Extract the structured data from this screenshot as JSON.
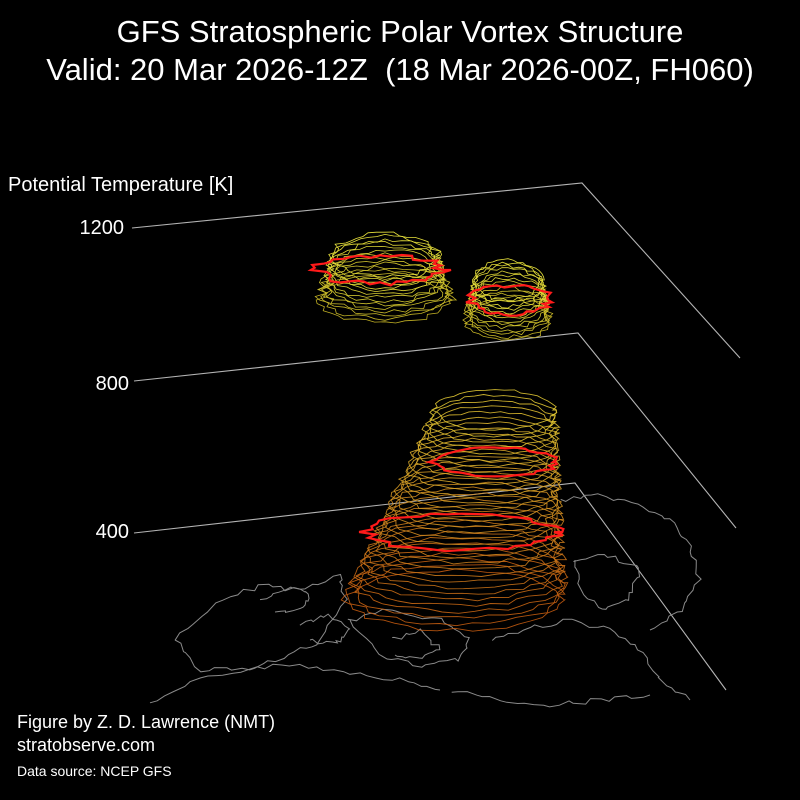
{
  "title_line1": "GFS Stratospheric Polar Vortex Structure",
  "title_line2": "Valid: 20 Mar 2026-12Z  (18 Mar 2026-00Z, FH060)",
  "credits": {
    "author": "Figure by Z. D. Lawrence (NMT)",
    "website": "stratobserve.com",
    "source": "Data source: NCEP GFS"
  },
  "chart_data": {
    "type": "3d-isosurface",
    "zlabel": "Potential Temperature [K]",
    "zticks": [
      400,
      800,
      1200
    ],
    "zlim": [
      400,
      1200
    ],
    "grid": true,
    "background": "#000000",
    "colors": {
      "lower_vortex": "#e8821c",
      "upper_vortex": "#e8e23c",
      "vortex_edge": "#ff1a1a",
      "coastlines": "#8a8a8a",
      "axes": "#b4b4b4"
    }
  }
}
